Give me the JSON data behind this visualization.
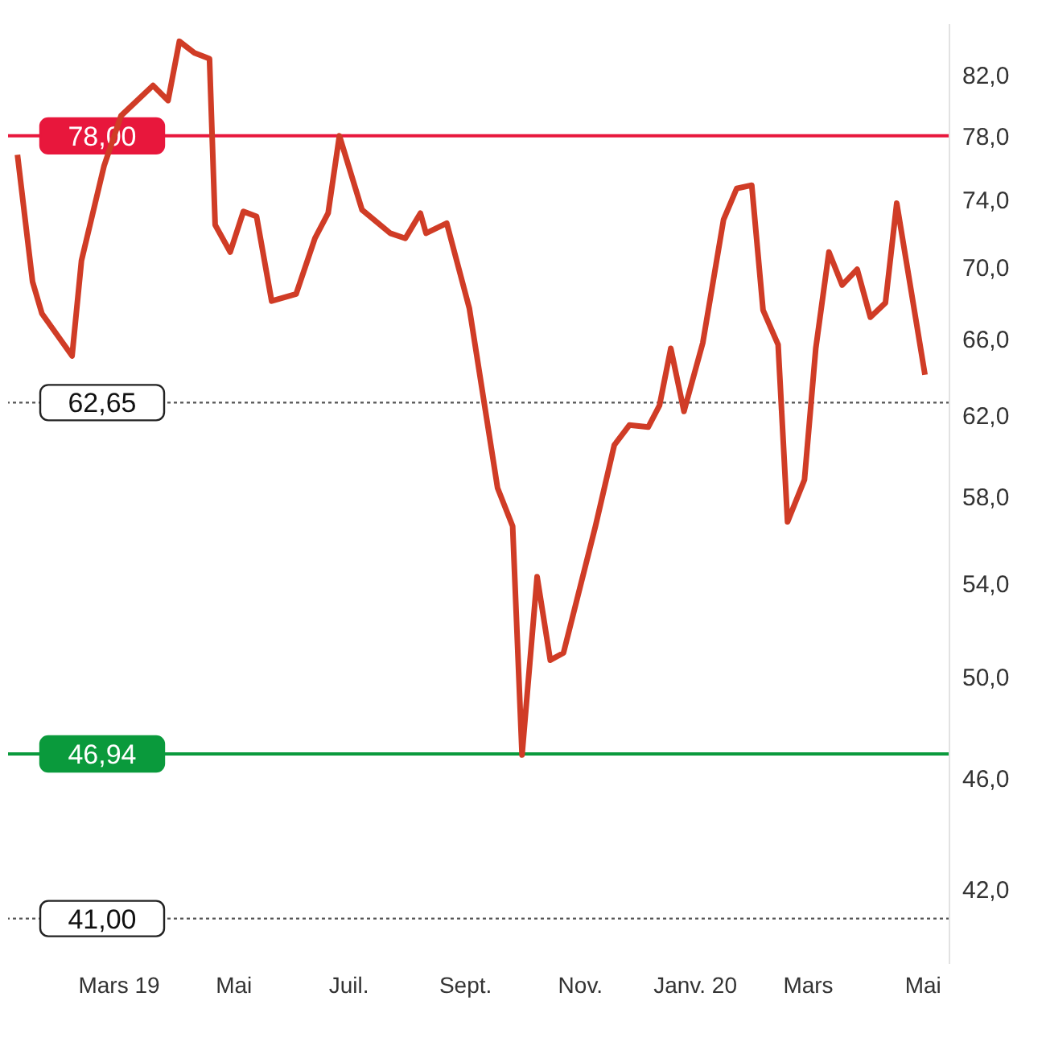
{
  "chart_data": {
    "type": "line",
    "log": true,
    "grid": false,
    "marker": "none",
    "line_style": "solid",
    "x": [
      "2019-01-06",
      "2019-01-14",
      "2019-01-19",
      "2019-02-04",
      "2019-02-09",
      "2019-02-21",
      "2019-03-02",
      "2019-03-19",
      "2019-03-27",
      "2019-04-02",
      "2019-04-10",
      "2019-04-18",
      "2019-04-21",
      "2019-04-29",
      "2019-05-06",
      "2019-05-13",
      "2019-05-21",
      "2019-06-03",
      "2019-06-13",
      "2019-06-20",
      "2019-06-26",
      "2019-07-08",
      "2019-07-23",
      "2019-07-31",
      "2019-08-08",
      "2019-08-11",
      "2019-08-22",
      "2019-09-03",
      "2019-09-18",
      "2019-09-26",
      "2019-10-01",
      "2019-10-09",
      "2019-10-16",
      "2019-10-23",
      "2019-11-09",
      "2019-11-19",
      "2019-11-27",
      "2019-12-07",
      "2019-12-13",
      "2019-12-19",
      "2019-12-26",
      "2020-01-05",
      "2020-01-16",
      "2020-01-23",
      "2020-01-31",
      "2020-02-06",
      "2020-02-14",
      "2020-02-19",
      "2020-02-28",
      "2020-03-05",
      "2020-03-12",
      "2020-03-19",
      "2020-03-27",
      "2020-04-03",
      "2020-04-11",
      "2020-04-17",
      "2020-05-02"
    ],
    "series": [
      {
        "color": "#d03c26",
        "values": [
          76.8,
          69.2,
          67.4,
          65.1,
          70.4,
          76.1,
          79.3,
          81.3,
          80.3,
          84.3,
          83.5,
          83.1,
          72.5,
          70.9,
          73.3,
          73.0,
          68.1,
          68.5,
          71.7,
          73.2,
          78.0,
          73.4,
          72.0,
          71.7,
          73.2,
          72.0,
          72.6,
          67.7,
          58.4,
          56.6,
          46.9,
          54.3,
          50.7,
          51.0,
          56.6,
          60.5,
          61.5,
          61.4,
          62.5,
          65.5,
          62.2,
          65.8,
          72.8,
          74.7,
          74.9,
          67.6,
          65.7,
          56.8,
          58.8,
          65.5,
          70.9,
          69.0,
          69.9,
          67.2,
          68.0,
          73.8,
          64.1
        ]
      }
    ],
    "xlim": [
      "2019-01-01",
      "2020-05-15"
    ],
    "xticks": [
      {
        "value": "2019-03-01",
        "label": "Mars 19"
      },
      {
        "value": "2019-05-01",
        "label": "Mai"
      },
      {
        "value": "2019-07-01",
        "label": "Juil."
      },
      {
        "value": "2019-09-01",
        "label": "Sept."
      },
      {
        "value": "2019-11-01",
        "label": "Nov."
      },
      {
        "value": "2020-01-01",
        "label": "Janv. 20"
      },
      {
        "value": "2020-03-01",
        "label": "Mars"
      },
      {
        "value": "2020-05-01",
        "label": "Mai"
      }
    ],
    "ylim": [
      39.5,
      85.5
    ],
    "yticks": [
      {
        "value": 42,
        "label": "42,0"
      },
      {
        "value": 46,
        "label": "46,0"
      },
      {
        "value": 50,
        "label": "50,0"
      },
      {
        "value": 54,
        "label": "54,0"
      },
      {
        "value": 58,
        "label": "58,0"
      },
      {
        "value": 62,
        "label": "62,0"
      },
      {
        "value": 66,
        "label": "66,0"
      },
      {
        "value": 70,
        "label": "70,0"
      },
      {
        "value": 74,
        "label": "74,0"
      },
      {
        "value": 78,
        "label": "78,0"
      },
      {
        "value": 82,
        "label": "82,0"
      }
    ],
    "ref_lines": [
      {
        "axis": "y",
        "value": 78,
        "label": "78,00",
        "color": "#e8173c",
        "line_style": "solid"
      },
      {
        "axis": "y",
        "value": 62.65,
        "label": "62,65",
        "color": "#555555",
        "line_style": "dotted"
      },
      {
        "axis": "y",
        "value": 46.94,
        "label": "46,94",
        "color": "#0a9a3c",
        "line_style": "solid"
      },
      {
        "axis": "y",
        "value": 41,
        "label": "41,00",
        "color": "#555555",
        "line_style": "dotted"
      }
    ]
  }
}
